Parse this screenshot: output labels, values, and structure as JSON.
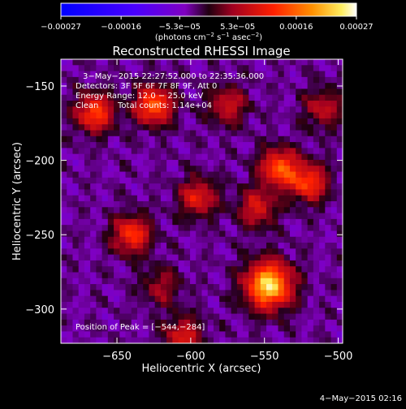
{
  "chart_data": {
    "type": "heatmap",
    "title": "Reconstructed RHESSI Image",
    "xlabel": "Heliocentric X (arcsec)",
    "ylabel": "Heliocentric Y (arcsec)",
    "xlim": [
      -688,
      -497
    ],
    "ylim": [
      -323,
      -132
    ],
    "x_ticks": [
      {
        "value": -650,
        "label": "−650"
      },
      {
        "value": -600,
        "label": "−600"
      },
      {
        "value": -550,
        "label": "−550"
      },
      {
        "value": -500,
        "label": "−500"
      }
    ],
    "y_ticks": [
      {
        "value": -150,
        "label": "−150"
      },
      {
        "value": -200,
        "label": "−200"
      },
      {
        "value": -250,
        "label": "−250"
      },
      {
        "value": -300,
        "label": "−300"
      }
    ],
    "colorbar": {
      "range": [
        -0.00027,
        0.00027
      ],
      "tick_values": [
        -0.00027,
        -0.00016,
        -5.3e-05,
        5.3e-05,
        0.00016,
        0.00027
      ],
      "tick_labels": [
        "−0.00027",
        "−0.00016",
        "−5.3e−05",
        "5.3e−05",
        "0.00016",
        "0.00027"
      ],
      "units": {
        "open": "(photons cm",
        "exp1": "−2",
        "mid1": " s",
        "exp2": "−1",
        "mid2": " asec",
        "exp3": "−2",
        "close": ")"
      }
    },
    "annotations": {
      "time_range": "3−May−2015 22:27:52.000 to 22:35:36.000",
      "detectors": "Detectors: 3F 5F 6F 7F 8F 9F, Att 0",
      "energy": "Energy Range: 12.0 − 25.0 keV",
      "clean": "Clean",
      "counts": "Total counts: 1.14e+04",
      "peak": "Position of Peak = [−544,−284]"
    },
    "peak_position": [
      -544,
      -284
    ],
    "sources": [
      {
        "x": -547,
        "y": -284,
        "amplitude": 0.00027
      },
      {
        "x": -625,
        "y": -163,
        "amplitude": 0.00019
      },
      {
        "x": -665,
        "y": -168,
        "amplitude": 0.00017
      },
      {
        "x": -540,
        "y": -205,
        "amplitude": 0.00018
      },
      {
        "x": -520,
        "y": -215,
        "amplitude": 0.00016
      },
      {
        "x": -640,
        "y": -250,
        "amplitude": 0.00016
      },
      {
        "x": -595,
        "y": -225,
        "amplitude": 0.00013
      },
      {
        "x": -575,
        "y": -163,
        "amplitude": 0.00011
      },
      {
        "x": -555,
        "y": -232,
        "amplitude": 0.00012
      },
      {
        "x": -605,
        "y": -318,
        "amplitude": 0.00012
      },
      {
        "x": -510,
        "y": -165,
        "amplitude": 0.0001
      },
      {
        "x": -620,
        "y": -285,
        "amplitude": 8e-05
      }
    ]
  },
  "footer": {
    "date": "4−May−2015 02:16"
  }
}
